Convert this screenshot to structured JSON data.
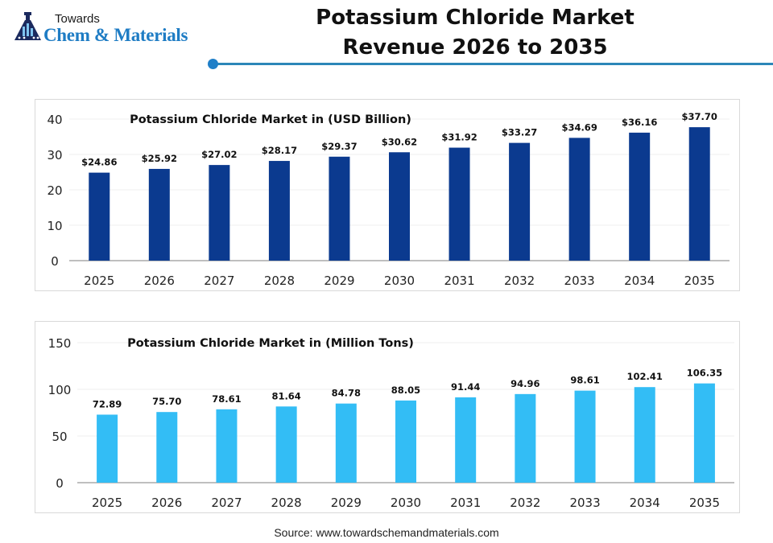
{
  "header": {
    "logo_towards": "Towards",
    "logo_name": "Chem & Materials",
    "title_line1": "Potassium Chloride Market",
    "title_line2": "Revenue 2026 to 2035",
    "accent_color": "#1f7fc8"
  },
  "source": "Source: www.towardschemandmaterials.com",
  "chart_data": [
    {
      "type": "bar",
      "title": "Potassium Chloride Market in (USD Billion)",
      "xlabel": "",
      "ylabel": "",
      "categories": [
        "2025",
        "2026",
        "2027",
        "2028",
        "2029",
        "2030",
        "2031",
        "2032",
        "2033",
        "2034",
        "2035"
      ],
      "values": [
        24.86,
        25.92,
        27.02,
        28.17,
        29.37,
        30.62,
        31.92,
        33.27,
        34.69,
        36.16,
        37.7
      ],
      "data_labels": [
        "$24.86",
        "$25.92",
        "$27.02",
        "$28.17",
        "$29.37",
        "$30.62",
        "$31.92",
        "$33.27",
        "$34.69",
        "$36.16",
        "$37.70"
      ],
      "yticks": [
        "0",
        "10",
        "20",
        "30",
        "40"
      ],
      "ytick_values": [
        0,
        10,
        20,
        30,
        40
      ],
      "ylim": [
        0,
        40
      ],
      "grid": true,
      "color": "#0b3a8f"
    },
    {
      "type": "bar",
      "title": "Potassium Chloride Market in (Million Tons)",
      "xlabel": "",
      "ylabel": "",
      "categories": [
        "2025",
        "2026",
        "2027",
        "2028",
        "2029",
        "2030",
        "2031",
        "2032",
        "2033",
        "2034",
        "2035"
      ],
      "values": [
        72.89,
        75.7,
        78.61,
        81.64,
        84.78,
        88.05,
        91.44,
        94.96,
        98.61,
        102.41,
        106.35
      ],
      "data_labels": [
        "72.89",
        "75.70",
        "78.61",
        "81.64",
        "84.78",
        "88.05",
        "91.44",
        "94.96",
        "98.61",
        "102.41",
        "106.35"
      ],
      "yticks": [
        "0",
        "50",
        "100",
        "150"
      ],
      "ytick_values": [
        0,
        50,
        100,
        150
      ],
      "ylim": [
        0,
        150
      ],
      "grid": true,
      "color": "#33bdf5"
    }
  ]
}
